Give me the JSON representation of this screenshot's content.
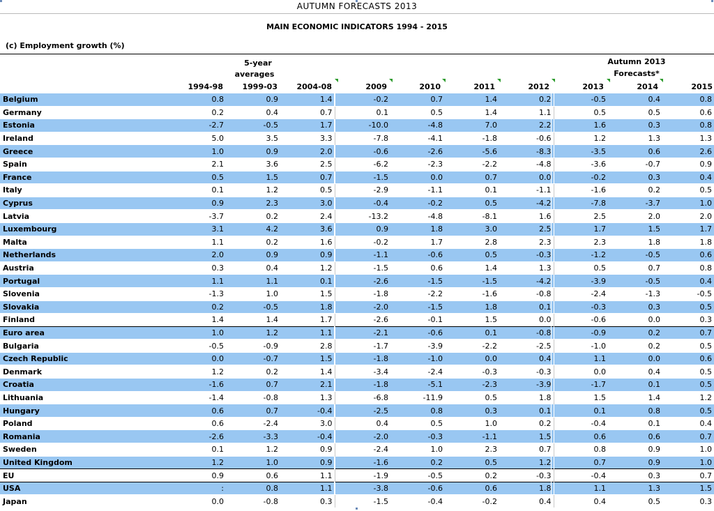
{
  "page_title": "AUTUMN FORECASTS 2013",
  "doc_title": "MAIN ECONOMIC INDICATORS 1994 - 2015",
  "section_label": "(c) Employment growth (%)",
  "header": {
    "group_avg_line1": "5-year",
    "group_avg_line2": "averages",
    "group_fc_line1": "Autumn 2013",
    "group_fc_line2": "Forecasts*",
    "columns": [
      "1994-98",
      "1999-03",
      "2004-08",
      "2009",
      "2010",
      "2011",
      "2012",
      "2013",
      "2014",
      "2015"
    ]
  },
  "table": {
    "rows": [
      {
        "name": "Belgium",
        "values": [
          "0.8",
          "0.9",
          "1.4",
          "-0.2",
          "0.7",
          "1.4",
          "0.2",
          "-0.5",
          "0.4",
          "0.8"
        ]
      },
      {
        "name": "Germany",
        "values": [
          "0.2",
          "0.4",
          "0.7",
          "0.1",
          "0.5",
          "1.4",
          "1.1",
          "0.5",
          "0.5",
          "0.6"
        ]
      },
      {
        "name": "Estonia",
        "values": [
          "-2.7",
          "-0.5",
          "1.7",
          "-10.0",
          "-4.8",
          "7.0",
          "2.2",
          "1.6",
          "0.3",
          "0.8"
        ]
      },
      {
        "name": "Ireland",
        "values": [
          "5.0",
          "3.5",
          "3.3",
          "-7.8",
          "-4.1",
          "-1.8",
          "-0.6",
          "1.2",
          "1.3",
          "1.3"
        ]
      },
      {
        "name": "Greece",
        "values": [
          "1.0",
          "0.9",
          "2.0",
          "-0.6",
          "-2.6",
          "-5.6",
          "-8.3",
          "-3.5",
          "0.6",
          "2.6"
        ]
      },
      {
        "name": "Spain",
        "values": [
          "2.1",
          "3.6",
          "2.5",
          "-6.2",
          "-2.3",
          "-2.2",
          "-4.8",
          "-3.6",
          "-0.7",
          "0.9"
        ]
      },
      {
        "name": "France",
        "values": [
          "0.5",
          "1.5",
          "0.7",
          "-1.5",
          "0.0",
          "0.7",
          "0.0",
          "-0.2",
          "0.3",
          "0.4"
        ]
      },
      {
        "name": "Italy",
        "values": [
          "0.1",
          "1.2",
          "0.5",
          "-2.9",
          "-1.1",
          "0.1",
          "-1.1",
          "-1.6",
          "0.2",
          "0.5"
        ]
      },
      {
        "name": "Cyprus",
        "values": [
          "0.9",
          "2.3",
          "3.0",
          "-0.4",
          "-0.2",
          "0.5",
          "-4.2",
          "-7.8",
          "-3.7",
          "1.0"
        ]
      },
      {
        "name": "Latvia",
        "values": [
          "-3.7",
          "0.2",
          "2.4",
          "-13.2",
          "-4.8",
          "-8.1",
          "1.6",
          "2.5",
          "2.0",
          "2.0"
        ]
      },
      {
        "name": "Luxembourg",
        "values": [
          "3.1",
          "4.2",
          "3.6",
          "0.9",
          "1.8",
          "3.0",
          "2.5",
          "1.7",
          "1.5",
          "1.7"
        ]
      },
      {
        "name": "Malta",
        "values": [
          "1.1",
          "0.2",
          "1.6",
          "-0.2",
          "1.7",
          "2.8",
          "2.3",
          "2.3",
          "1.8",
          "1.8"
        ]
      },
      {
        "name": "Netherlands",
        "values": [
          "2.0",
          "0.9",
          "0.9",
          "-1.1",
          "-0.6",
          "0.5",
          "-0.3",
          "-1.2",
          "-0.5",
          "0.6"
        ]
      },
      {
        "name": "Austria",
        "values": [
          "0.3",
          "0.4",
          "1.2",
          "-1.5",
          "0.6",
          "1.4",
          "1.3",
          "0.5",
          "0.7",
          "0.8"
        ]
      },
      {
        "name": "Portugal",
        "values": [
          "1.1",
          "1.1",
          "0.1",
          "-2.6",
          "-1.5",
          "-1.5",
          "-4.2",
          "-3.9",
          "-0.5",
          "0.4"
        ]
      },
      {
        "name": "Slovenia",
        "values": [
          "-1.3",
          "1.0",
          "1.5",
          "-1.8",
          "-2.2",
          "-1.6",
          "-0.8",
          "-2.4",
          "-1.3",
          "-0.5"
        ]
      },
      {
        "name": "Slovakia",
        "values": [
          "0.2",
          "-0.5",
          "1.8",
          "-2.0",
          "-1.5",
          "1.8",
          "0.1",
          "-0.3",
          "0.3",
          "0.5"
        ]
      },
      {
        "name": "Finland",
        "values": [
          "1.4",
          "1.4",
          "1.7",
          "-2.6",
          "-0.1",
          "1.5",
          "0.0",
          "-0.6",
          "0.0",
          "0.3"
        ]
      },
      {
        "name": "Euro area",
        "values": [
          "1.0",
          "1.2",
          "1.1",
          "-2.1",
          "-0.6",
          "0.1",
          "-0.8",
          "-0.9",
          "0.2",
          "0.7"
        ]
      },
      {
        "name": "Bulgaria",
        "values": [
          "-0.5",
          "-0.9",
          "2.8",
          "-1.7",
          "-3.9",
          "-2.2",
          "-2.5",
          "-1.0",
          "0.2",
          "0.5"
        ]
      },
      {
        "name": "Czech Republic",
        "values": [
          "0.0",
          "-0.7",
          "1.5",
          "-1.8",
          "-1.0",
          "0.0",
          "0.4",
          "1.1",
          "0.0",
          "0.6"
        ]
      },
      {
        "name": "Denmark",
        "values": [
          "1.2",
          "0.2",
          "1.4",
          "-3.4",
          "-2.4",
          "-0.3",
          "-0.3",
          "0.0",
          "0.4",
          "0.5"
        ]
      },
      {
        "name": "Croatia",
        "values": [
          "-1.6",
          "0.7",
          "2.1",
          "-1.8",
          "-5.1",
          "-2.3",
          "-3.9",
          "-1.7",
          "0.1",
          "0.5"
        ]
      },
      {
        "name": "Lithuania",
        "values": [
          "-1.4",
          "-0.8",
          "1.3",
          "-6.8",
          "-11.9",
          "0.5",
          "1.8",
          "1.5",
          "1.4",
          "1.2"
        ]
      },
      {
        "name": "Hungary",
        "values": [
          "0.6",
          "0.7",
          "-0.4",
          "-2.5",
          "0.8",
          "0.3",
          "0.1",
          "0.1",
          "0.8",
          "0.5"
        ]
      },
      {
        "name": "Poland",
        "values": [
          "0.6",
          "-2.4",
          "3.0",
          "0.4",
          "0.5",
          "1.0",
          "0.2",
          "-0.4",
          "0.1",
          "0.4"
        ]
      },
      {
        "name": "Romania",
        "values": [
          "-2.6",
          "-3.3",
          "-0.4",
          "-2.0",
          "-0.3",
          "-1.1",
          "1.5",
          "0.6",
          "0.6",
          "0.7"
        ]
      },
      {
        "name": "Sweden",
        "values": [
          "0.1",
          "1.2",
          "0.9",
          "-2.4",
          "1.0",
          "2.3",
          "0.7",
          "0.8",
          "0.9",
          "1.0"
        ]
      },
      {
        "name": "United Kingdom",
        "values": [
          "1.2",
          "1.0",
          "0.9",
          "-1.6",
          "0.2",
          "0.5",
          "1.2",
          "0.7",
          "0.9",
          "1.0"
        ]
      },
      {
        "name": "EU",
        "values": [
          "0.9",
          "0.6",
          "1.1",
          "-1.9",
          "-0.5",
          "0.2",
          "-0.3",
          "-0.4",
          "0.3",
          "0.7"
        ]
      },
      {
        "name": "USA",
        "values": [
          ":",
          "0.8",
          "1.1",
          "-3.8",
          "-0.6",
          "0.6",
          "1.8",
          "1.1",
          "1.3",
          "1.5"
        ]
      },
      {
        "name": "Japan",
        "values": [
          "0.0",
          "-0.8",
          "0.3",
          "-1.5",
          "-0.4",
          "-0.2",
          "0.4",
          "0.4",
          "0.5",
          "0.3"
        ]
      }
    ]
  },
  "colors": {
    "row_highlight": "#99c7f2",
    "tick_mark": "#2d9b2d"
  }
}
